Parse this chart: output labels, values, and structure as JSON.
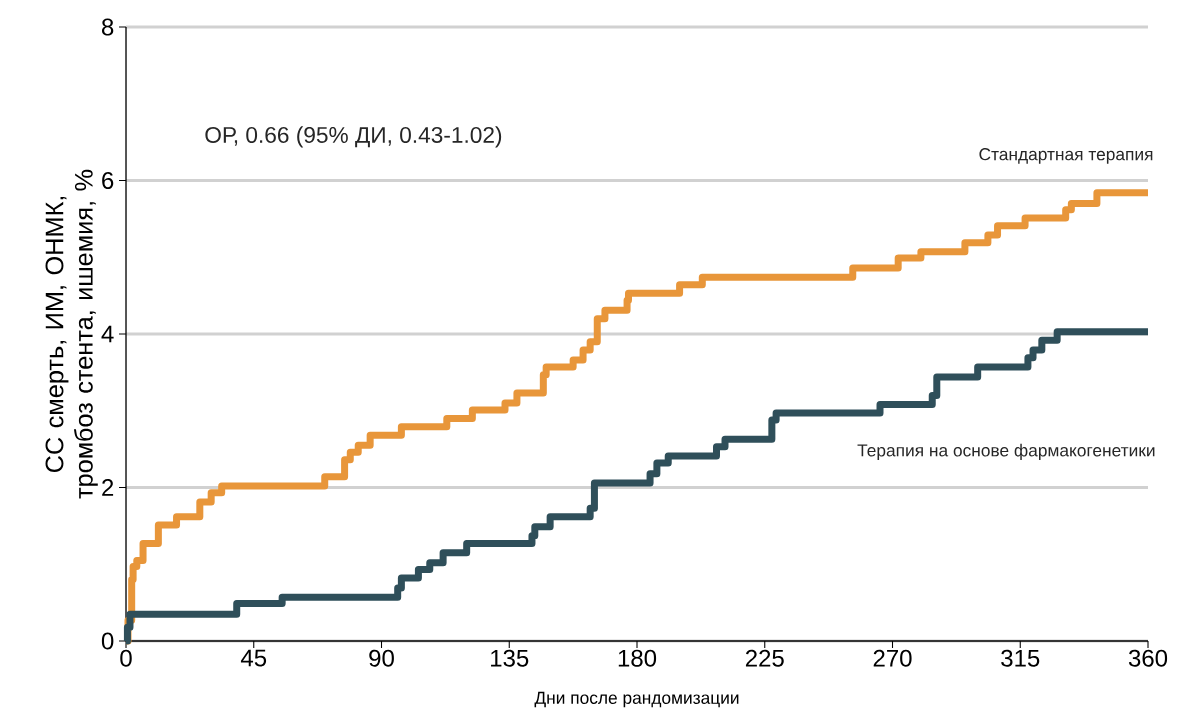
{
  "chart_data": {
    "type": "step",
    "xlabel": "Дни после рандомизации",
    "ylabel": "СС смерть, ИМ, ОНМК, тромбоз стента, ишемия, %",
    "annotations": [
      "ОР, 0.66 (95% ДИ, 0.43-1.02)"
    ],
    "xlim": [
      0,
      360
    ],
    "ylim": [
      0,
      8
    ],
    "xticks": [
      0,
      45,
      90,
      135,
      180,
      225,
      270,
      315,
      360
    ],
    "yticks": [
      0,
      2,
      4,
      6,
      8
    ],
    "grid": "y",
    "marker": "none",
    "line_style": "solid",
    "series": [
      {
        "name": "Стандартная терапия",
        "color": "#e8963a",
        "x": [
          0,
          0.7,
          2,
          2.5,
          3.8,
          6,
          11.4,
          17.8,
          26,
          30,
          33.7,
          70,
          77,
          79,
          81.8,
          86,
          97,
          113,
          122,
          133.5,
          137.7,
          147,
          148,
          157.5,
          161,
          163.5,
          166,
          168.7,
          176.5,
          177,
          195,
          203,
          256,
          272,
          280,
          295.5,
          303.6,
          307,
          316.7,
          331,
          333,
          342,
          360
        ],
        "values": [
          0,
          0.27,
          0.8,
          0.97,
          1.05,
          1.27,
          1.51,
          1.62,
          1.81,
          1.93,
          2.02,
          2.14,
          2.36,
          2.46,
          2.55,
          2.68,
          2.79,
          2.9,
          3.01,
          3.1,
          3.23,
          3.47,
          3.57,
          3.66,
          3.79,
          3.9,
          4.2,
          4.31,
          4.44,
          4.53,
          4.64,
          4.74,
          4.86,
          4.99,
          5.07,
          5.19,
          5.29,
          5.41,
          5.51,
          5.62,
          5.7,
          5.84,
          5.84
        ]
      },
      {
        "name": "Терапия на основе фармакогенетики",
        "color": "#2f4f5a",
        "x": [
          0,
          0.5,
          1.4,
          39,
          55,
          95.7,
          97,
          103,
          107,
          111.7,
          120,
          143,
          144,
          149.4,
          163.5,
          165,
          184.6,
          187,
          191,
          208,
          211,
          227.5,
          229,
          265.6,
          284,
          285.6,
          300,
          317.7,
          319.5,
          322.6,
          328,
          360
        ],
        "values": [
          0,
          0.18,
          0.35,
          0.49,
          0.57,
          0.69,
          0.82,
          0.93,
          1.02,
          1.15,
          1.27,
          1.37,
          1.49,
          1.62,
          1.73,
          2.06,
          2.18,
          2.32,
          2.41,
          2.53,
          2.63,
          2.88,
          2.97,
          3.08,
          3.2,
          3.44,
          3.57,
          3.69,
          3.79,
          3.92,
          4.03,
          4.03
        ]
      }
    ]
  }
}
